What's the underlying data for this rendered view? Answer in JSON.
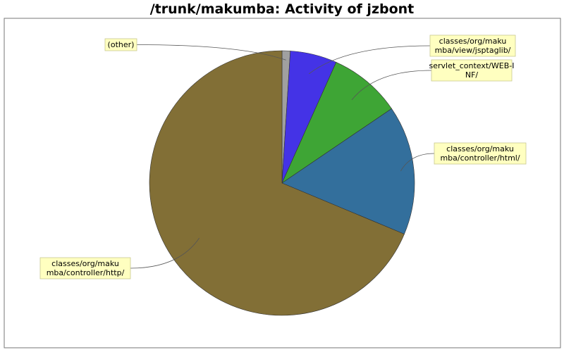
{
  "chart_data": {
    "type": "pie",
    "title": "/trunk/makumba: Activity of jzbont",
    "slices": [
      {
        "label": "(other)",
        "value": 1.0,
        "color": "#a0a0a0"
      },
      {
        "label": "classes/org/makumba/view/jsptaglib/",
        "value": 5.7,
        "color": "#4433e6"
      },
      {
        "label": "servlet_context/WEB-INF/",
        "value": 8.8,
        "color": "#3ea535"
      },
      {
        "label": "classes/org/makumba/controller/html/",
        "value": 15.8,
        "color": "#336f9c"
      },
      {
        "label": "classes/org/makumba/controller/http/",
        "value": 68.7,
        "color": "#826f36"
      }
    ]
  }
}
